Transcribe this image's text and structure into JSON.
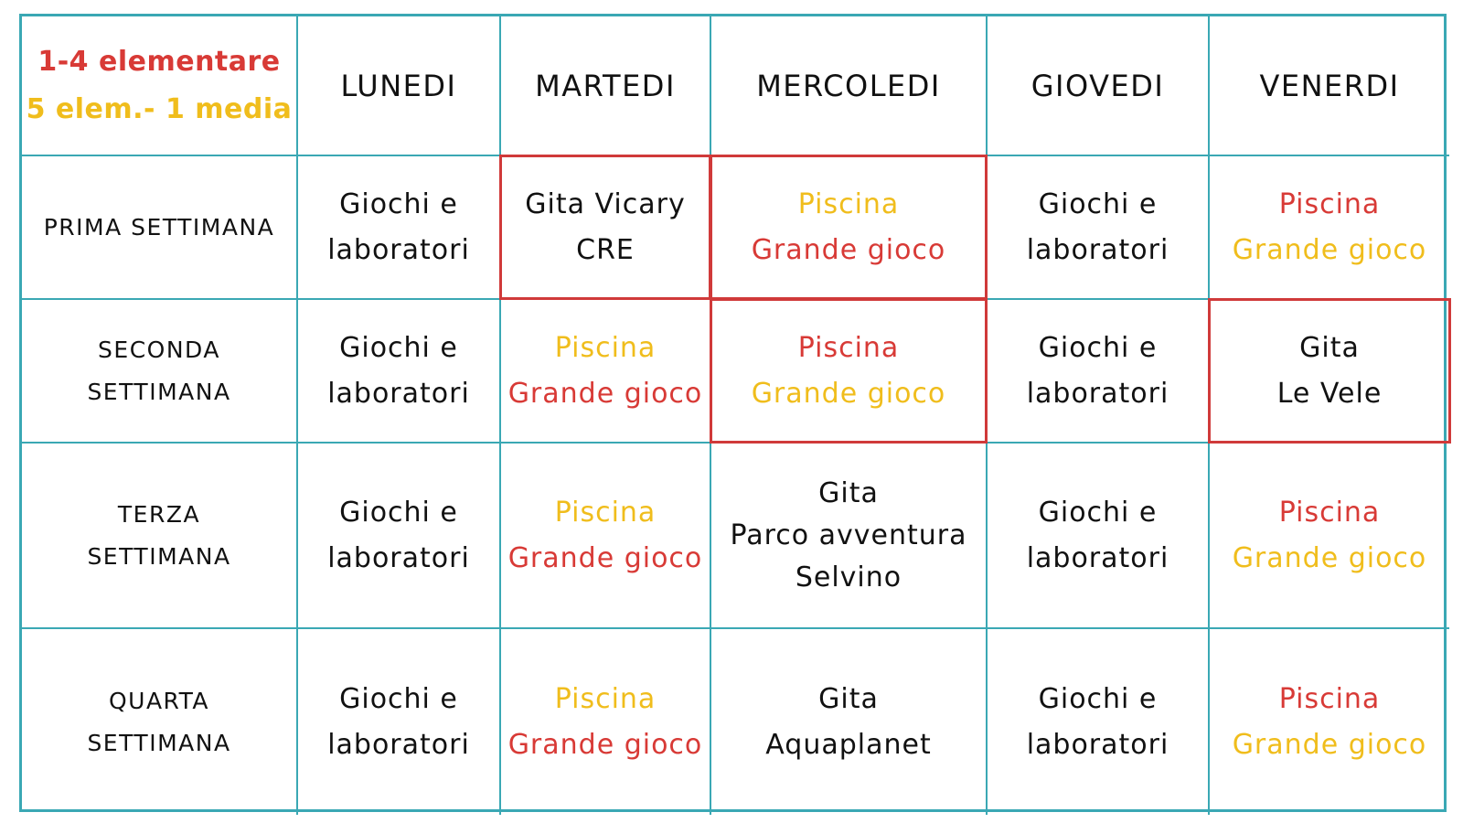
{
  "colors": {
    "grid_line": "#3aa8b4",
    "highlight_border": "#d03a3a",
    "red_group": "#d83a36",
    "yellow_group": "#f0bd1c",
    "text": "#111111"
  },
  "legend": {
    "group_a": "1-4 elementare",
    "group_a_color": "red",
    "group_b": "5 elem.- 1 media",
    "group_b_color": "yellow"
  },
  "days": [
    "LUNEDI",
    "MARTEDI",
    "MERCOLEDI",
    "GIOVEDI",
    "VENERDI"
  ],
  "weeks": [
    {
      "label_lines": [
        "PRIMA SETTIMANA"
      ],
      "cells": [
        {
          "highlight": false,
          "lines": [
            {
              "text": "Giochi e",
              "color": "black"
            },
            {
              "text": "laboratori",
              "color": "black"
            }
          ]
        },
        {
          "highlight": true,
          "lines": [
            {
              "text": "Gita Vicary",
              "color": "black"
            },
            {
              "text": "CRE",
              "color": "black"
            }
          ]
        },
        {
          "highlight": true,
          "lines": [
            {
              "text": "Piscina",
              "color": "yellow"
            },
            {
              "text": "Grande gioco",
              "color": "red"
            }
          ]
        },
        {
          "highlight": false,
          "lines": [
            {
              "text": "Giochi e",
              "color": "black"
            },
            {
              "text": "laboratori",
              "color": "black"
            }
          ]
        },
        {
          "highlight": false,
          "lines": [
            {
              "text": "Piscina",
              "color": "red"
            },
            {
              "text": "Grande gioco",
              "color": "yellow"
            }
          ]
        }
      ]
    },
    {
      "label_lines": [
        "SECONDA",
        "SETTIMANA"
      ],
      "cells": [
        {
          "highlight": false,
          "lines": [
            {
              "text": "Giochi e",
              "color": "black"
            },
            {
              "text": "laboratori",
              "color": "black"
            }
          ]
        },
        {
          "highlight": false,
          "lines": [
            {
              "text": "Piscina",
              "color": "yellow"
            },
            {
              "text": "Grande gioco",
              "color": "red"
            }
          ]
        },
        {
          "highlight": true,
          "lines": [
            {
              "text": "Piscina",
              "color": "red"
            },
            {
              "text": "Grande gioco",
              "color": "yellow"
            }
          ]
        },
        {
          "highlight": false,
          "lines": [
            {
              "text": "Giochi e",
              "color": "black"
            },
            {
              "text": "laboratori",
              "color": "black"
            }
          ]
        },
        {
          "highlight": true,
          "lines": [
            {
              "text": "Gita",
              "color": "black"
            },
            {
              "text": "Le Vele",
              "color": "black"
            }
          ]
        }
      ]
    },
    {
      "label_lines": [
        "TERZA",
        "SETTIMANA"
      ],
      "cells": [
        {
          "highlight": false,
          "lines": [
            {
              "text": "Giochi e",
              "color": "black"
            },
            {
              "text": "laboratori",
              "color": "black"
            }
          ]
        },
        {
          "highlight": false,
          "lines": [
            {
              "text": "Piscina",
              "color": "yellow"
            },
            {
              "text": "Grande gioco",
              "color": "red"
            }
          ]
        },
        {
          "highlight": false,
          "lines": [
            {
              "text": "Gita",
              "color": "black"
            },
            {
              "text": "Parco avventura",
              "color": "black"
            },
            {
              "text": "Selvino",
              "color": "black"
            }
          ]
        },
        {
          "highlight": false,
          "lines": [
            {
              "text": "Giochi e",
              "color": "black"
            },
            {
              "text": "laboratori",
              "color": "black"
            }
          ]
        },
        {
          "highlight": false,
          "lines": [
            {
              "text": "Piscina",
              "color": "red"
            },
            {
              "text": "Grande gioco",
              "color": "yellow"
            }
          ]
        }
      ]
    },
    {
      "label_lines": [
        "QUARTA",
        "SETTIMANA"
      ],
      "cells": [
        {
          "highlight": false,
          "lines": [
            {
              "text": "Giochi e",
              "color": "black"
            },
            {
              "text": "laboratori",
              "color": "black"
            }
          ]
        },
        {
          "highlight": false,
          "lines": [
            {
              "text": "Piscina",
              "color": "yellow"
            },
            {
              "text": "Grande gioco",
              "color": "red"
            }
          ]
        },
        {
          "highlight": false,
          "lines": [
            {
              "text": "Gita",
              "color": "black"
            },
            {
              "text": "Aquaplanet",
              "color": "black"
            }
          ]
        },
        {
          "highlight": false,
          "lines": [
            {
              "text": "Giochi e",
              "color": "black"
            },
            {
              "text": "laboratori",
              "color": "black"
            }
          ]
        },
        {
          "highlight": false,
          "lines": [
            {
              "text": "Piscina",
              "color": "red"
            },
            {
              "text": "Grande gioco",
              "color": "yellow"
            }
          ]
        }
      ]
    }
  ]
}
